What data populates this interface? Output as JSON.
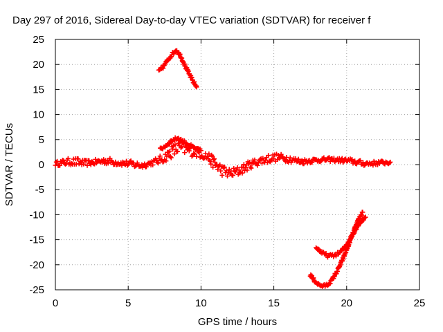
{
  "chart_data": {
    "type": "scatter",
    "title": "Day 297 of 2016, Sidereal Day-to-day VTEC variation (SDTVAR) for receiver f",
    "xlabel": "GPS time / hours",
    "ylabel": "SDTVAR / TECUs",
    "xlim": [
      0,
      25
    ],
    "ylim": [
      -25,
      25
    ],
    "xticks": [
      0,
      5,
      10,
      15,
      20,
      25
    ],
    "yticks": [
      25,
      20,
      15,
      10,
      5,
      0,
      -5,
      -10,
      -15,
      -20,
      -25
    ],
    "xtick_labels": [
      "0",
      "5",
      "10",
      "15",
      "20",
      "25"
    ],
    "ytick_labels": [
      "25",
      "20",
      "15",
      "10",
      "5",
      "0",
      "-5",
      "-10",
      "-15",
      "-20",
      "-25"
    ],
    "grid": true,
    "marker": "plus",
    "color": "#ff0000",
    "series": [
      {
        "x": [
          0.0,
          0.5,
          1.0,
          1.5,
          2.0,
          2.5,
          3.0,
          3.5,
          4.0,
          4.5,
          5.0,
          5.5,
          6.0,
          6.5,
          7.0,
          7.5,
          8.0,
          8.5,
          9.0,
          9.5,
          10.0,
          10.5,
          11.0,
          11.5,
          12.0,
          12.5,
          13.0,
          13.5,
          14.0,
          14.5,
          15.0,
          15.5,
          16.0,
          16.5,
          17.0,
          17.5,
          18.0,
          18.5,
          19.0,
          19.5,
          20.0,
          20.5,
          21.0,
          21.5,
          22.0,
          22.5,
          23.0
        ],
        "y": [
          0.2,
          0.4,
          0.6,
          0.5,
          0.3,
          0.4,
          0.6,
          0.8,
          0.5,
          0.3,
          0.2,
          0.0,
          -0.2,
          0.3,
          0.7,
          1.4,
          2.6,
          3.4,
          3.0,
          2.6,
          2.2,
          1.5,
          0.0,
          -1.2,
          -1.8,
          -1.4,
          -0.6,
          0.2,
          0.7,
          1.1,
          1.4,
          1.4,
          1.2,
          0.8,
          0.6,
          0.8,
          0.9,
          1.0,
          1.0,
          0.9,
          0.8,
          0.6,
          0.3,
          0.2,
          0.3,
          0.4,
          0.5
        ],
        "spread": [
          0.4,
          0.6,
          0.7,
          0.8,
          0.6,
          0.5,
          0.6,
          0.7,
          0.6,
          0.5,
          0.6,
          0.7,
          0.5,
          0.5,
          0.7,
          0.9,
          1.2,
          1.5,
          1.2,
          1.0,
          0.9,
          1.0,
          1.2,
          1.1,
          1.0,
          1.0,
          0.9,
          0.8,
          0.8,
          0.9,
          0.8,
          0.7,
          0.7,
          0.6,
          0.5,
          0.5,
          0.4,
          0.4,
          0.4,
          0.4,
          0.5,
          0.5,
          0.5,
          0.5,
          0.4,
          0.4,
          0.4
        ]
      },
      {
        "x": [
          7.2,
          7.6,
          8.0,
          8.4,
          8.8,
          9.2,
          9.6,
          10.0
        ],
        "y": [
          3.0,
          3.8,
          4.8,
          5.3,
          4.6,
          3.9,
          3.2,
          2.8
        ],
        "spread": [
          0.3,
          0.3,
          0.3,
          0.3,
          0.3,
          0.3,
          0.3,
          0.3
        ]
      },
      {
        "x": [
          7.1,
          7.4,
          7.7,
          8.0,
          8.3,
          8.6,
          8.9,
          9.2,
          9.5,
          9.7
        ],
        "y": [
          18.7,
          19.5,
          20.8,
          22.0,
          22.9,
          21.7,
          19.8,
          18.0,
          16.4,
          15.5
        ],
        "spread": [
          0.3,
          0.3,
          0.3,
          0.3,
          0.3,
          0.3,
          0.3,
          0.3,
          0.3,
          0.3
        ]
      },
      {
        "x": [
          17.5,
          17.8,
          18.1,
          18.4,
          18.7,
          19.0,
          19.4,
          19.8,
          20.2,
          20.6,
          20.9,
          21.1
        ],
        "y": [
          -22.0,
          -23.2,
          -24.0,
          -24.3,
          -24.0,
          -23.0,
          -21.0,
          -18.5,
          -15.5,
          -12.5,
          -10.5,
          -9.5
        ],
        "spread": [
          0.3,
          0.3,
          0.3,
          0.3,
          0.3,
          0.3,
          0.3,
          0.3,
          0.3,
          0.3,
          0.3,
          0.3
        ]
      },
      {
        "x": [
          17.9,
          18.3,
          18.7,
          19.1,
          19.5,
          19.9,
          20.2,
          20.5,
          20.8,
          21.1,
          21.3
        ],
        "y": [
          -16.5,
          -17.6,
          -18.2,
          -18.2,
          -17.6,
          -16.5,
          -15.0,
          -13.5,
          -12.0,
          -11.0,
          -10.5
        ],
        "spread": [
          0.3,
          0.3,
          0.3,
          0.3,
          0.3,
          0.3,
          0.3,
          0.3,
          0.3,
          0.3,
          0.3
        ]
      }
    ]
  }
}
